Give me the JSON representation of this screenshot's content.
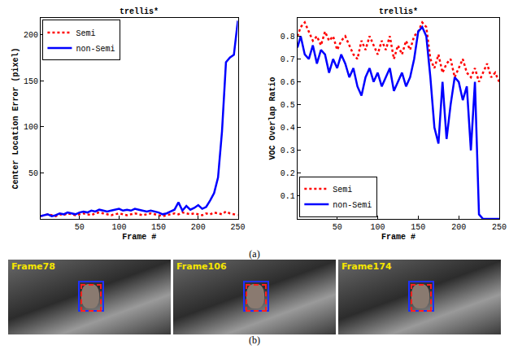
{
  "chart_data": [
    {
      "type": "line",
      "title": "trellis*",
      "x_label": "Frame #",
      "y_label": "Center Location Error (pixel)",
      "x": [
        1,
        5,
        10,
        15,
        20,
        25,
        30,
        35,
        40,
        45,
        50,
        55,
        60,
        65,
        70,
        75,
        80,
        85,
        90,
        95,
        100,
        105,
        110,
        115,
        120,
        125,
        130,
        135,
        140,
        145,
        150,
        155,
        160,
        165,
        170,
        175,
        180,
        185,
        190,
        195,
        200,
        205,
        210,
        215,
        220,
        225,
        230,
        235,
        240,
        245,
        250
      ],
      "series": [
        {
          "name": "Semi",
          "color": "#ff0000",
          "line_style": "dotted",
          "values": [
            3,
            4,
            5,
            4,
            3,
            5,
            4,
            6,
            5,
            4,
            5,
            6,
            5,
            4,
            6,
            7,
            6,
            5,
            4,
            5,
            6,
            5,
            4,
            5,
            6,
            5,
            4,
            5,
            6,
            5,
            4,
            3,
            4,
            5,
            6,
            5,
            7,
            6,
            5,
            6,
            5,
            4,
            6,
            5,
            7,
            6,
            5,
            8,
            6,
            5,
            4
          ]
        },
        {
          "name": "non-Semi",
          "color": "#0000ff",
          "line_style": "solid",
          "values": [
            3,
            4,
            5,
            3,
            4,
            6,
            5,
            7,
            6,
            5,
            7,
            8,
            7,
            9,
            8,
            10,
            9,
            8,
            9,
            10,
            11,
            9,
            10,
            9,
            11,
            10,
            9,
            8,
            9,
            8,
            7,
            5,
            6,
            8,
            10,
            18,
            9,
            14,
            10,
            12,
            15,
            11,
            13,
            20,
            28,
            45,
            95,
            170,
            175,
            178,
            215
          ]
        }
      ],
      "xlim": [
        1,
        250
      ],
      "xticks": [
        50,
        100,
        150,
        200,
        250
      ],
      "ylim": [
        0,
        218
      ],
      "yticks": [
        50,
        100,
        150,
        200
      ],
      "grid": false,
      "legend": "upper left"
    },
    {
      "type": "line",
      "title": "trellis*",
      "x_label": "Frame #",
      "y_label": "VOC Overlap Ratio",
      "x": [
        1,
        5,
        10,
        15,
        20,
        25,
        30,
        35,
        40,
        45,
        50,
        55,
        60,
        65,
        70,
        75,
        80,
        85,
        90,
        95,
        100,
        105,
        110,
        115,
        120,
        125,
        130,
        135,
        140,
        145,
        150,
        155,
        160,
        165,
        170,
        175,
        180,
        185,
        190,
        195,
        200,
        205,
        210,
        215,
        220,
        225,
        230,
        235,
        240,
        245,
        250
      ],
      "series": [
        {
          "name": "Semi",
          "color": "#ff0000",
          "line_style": "dotted",
          "values": [
            0.8,
            0.84,
            0.86,
            0.82,
            0.78,
            0.8,
            0.76,
            0.82,
            0.78,
            0.8,
            0.74,
            0.78,
            0.8,
            0.76,
            0.72,
            0.7,
            0.78,
            0.74,
            0.8,
            0.76,
            0.72,
            0.78,
            0.74,
            0.8,
            0.7,
            0.76,
            0.72,
            0.78,
            0.74,
            0.8,
            0.82,
            0.86,
            0.84,
            0.7,
            0.66,
            0.72,
            0.64,
            0.68,
            0.7,
            0.62,
            0.66,
            0.7,
            0.64,
            0.62,
            0.66,
            0.6,
            0.64,
            0.68,
            0.62,
            0.64,
            0.6
          ]
        },
        {
          "name": "non-Semi",
          "color": "#0000ff",
          "line_style": "solid",
          "values": [
            0.75,
            0.8,
            0.72,
            0.7,
            0.76,
            0.68,
            0.74,
            0.72,
            0.64,
            0.7,
            0.66,
            0.72,
            0.68,
            0.62,
            0.66,
            0.58,
            0.54,
            0.62,
            0.66,
            0.6,
            0.64,
            0.58,
            0.62,
            0.66,
            0.56,
            0.6,
            0.64,
            0.58,
            0.62,
            0.7,
            0.82,
            0.84,
            0.8,
            0.62,
            0.4,
            0.33,
            0.6,
            0.35,
            0.5,
            0.62,
            0.6,
            0.52,
            0.58,
            0.3,
            0.6,
            0.02,
            0,
            0,
            0,
            0,
            0
          ]
        }
      ],
      "xlim": [
        1,
        250
      ],
      "xticks": [
        50,
        100,
        150,
        200,
        250
      ],
      "ylim": [
        0,
        0.88
      ],
      "yticks": [
        0.1,
        0.2,
        0.3,
        0.4,
        0.5,
        0.6,
        0.7,
        0.8
      ],
      "grid": false,
      "legend": "lower left"
    }
  ],
  "figure": {
    "panel_labels": [
      "(a)",
      "(b)"
    ],
    "frames": [
      "Frame78",
      "Frame106",
      "Frame174"
    ]
  }
}
